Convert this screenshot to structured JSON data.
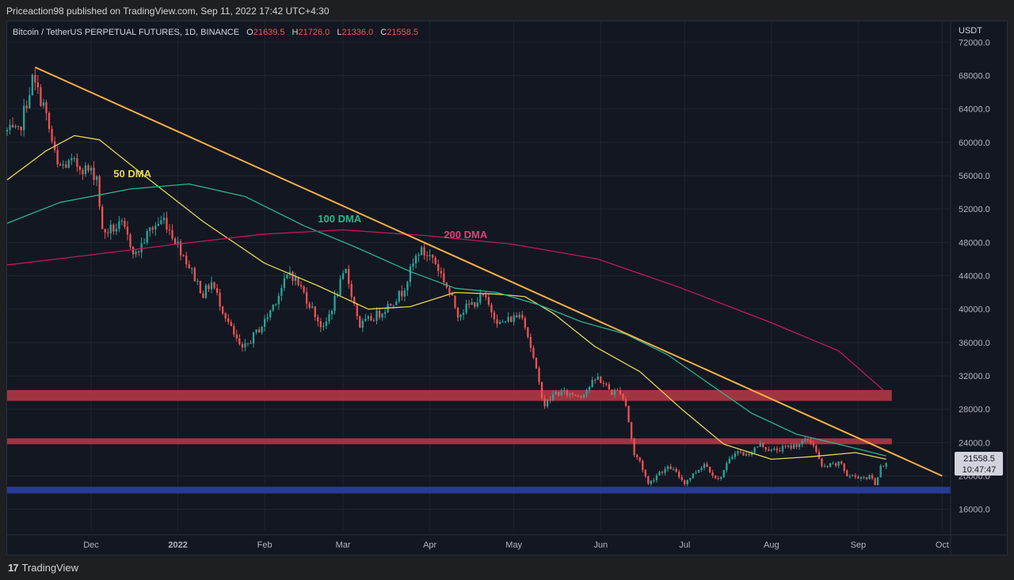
{
  "header": {
    "publisher_line": "Priceaction98 published on TradingView.com, Sep 11, 2022 17:42 UTC+4:30"
  },
  "symbol": {
    "name": "Bitcoin / TetherUS PERPETUAL FUTURES, 1D, BINANCE",
    "o_label": "O",
    "o_value": "21639.5",
    "h_label": "H",
    "h_value": "21726.0",
    "l_label": "L",
    "l_value": "21336.0",
    "c_label": "C",
    "c_value": "21558.5"
  },
  "footer": {
    "logo": "17",
    "brand": "TradingView"
  },
  "colors": {
    "background": "#131722",
    "up": "#26a69a",
    "down": "#ef5350",
    "ma50": "#e6d850",
    "ma100": "#2bb58c",
    "ma200": "#c2185b",
    "trendline": "#f5b041",
    "resistance_zone": "#b33a46",
    "support_zone": "#2b3fa6",
    "text": "#d1d4dc",
    "axis_text": "#b2b5be"
  },
  "chart_data": {
    "type": "candlestick",
    "title": "Bitcoin / TetherUS PERPETUAL FUTURES, 1D, BINANCE",
    "ylabel": "USDT",
    "ylim": [
      13500,
      74500
    ],
    "y_ticks": [
      "72000.0",
      "68000.0",
      "64000.0",
      "60000.0",
      "56000.0",
      "52000.0",
      "48000.0",
      "44000.0",
      "40000.0",
      "36000.0",
      "32000.0",
      "28000.0",
      "24000.0",
      "20000.0",
      "16000.0"
    ],
    "x_ticks": [
      {
        "label": "Dec",
        "date": "2021-12-01"
      },
      {
        "label": "2022",
        "date": "2022-01-01",
        "bold": true
      },
      {
        "label": "Feb",
        "date": "2022-02-01"
      },
      {
        "label": "Mar",
        "date": "2022-03-01"
      },
      {
        "label": "Apr",
        "date": "2022-04-01"
      },
      {
        "label": "May",
        "date": "2022-05-01"
      },
      {
        "label": "Jun",
        "date": "2022-06-01"
      },
      {
        "label": "Jul",
        "date": "2022-07-01"
      },
      {
        "label": "Aug",
        "date": "2022-08-01"
      },
      {
        "label": "Sep",
        "date": "2022-09-01"
      },
      {
        "label": "Oct",
        "date": "2022-10-01"
      }
    ],
    "x_range": [
      "2021-11-01",
      "2022-10-04"
    ],
    "price_path": [
      [
        "2021-11-01",
        61300
      ],
      [
        "2021-11-05",
        61000
      ],
      [
        "2021-11-10",
        67500
      ],
      [
        "2021-11-14",
        64500
      ],
      [
        "2021-11-19",
        57000
      ],
      [
        "2021-11-24",
        57500
      ],
      [
        "2021-11-28",
        57000
      ],
      [
        "2021-12-03",
        56000
      ],
      [
        "2021-12-05",
        49200
      ],
      [
        "2021-12-12",
        50000
      ],
      [
        "2021-12-17",
        46500
      ],
      [
        "2021-12-22",
        49500
      ],
      [
        "2021-12-27",
        50800
      ],
      [
        "2022-01-03",
        46500
      ],
      [
        "2022-01-10",
        41800
      ],
      [
        "2022-01-13",
        43200
      ],
      [
        "2022-01-21",
        36800
      ],
      [
        "2022-01-24",
        35000
      ],
      [
        "2022-02-01",
        38500
      ],
      [
        "2022-02-07",
        42500
      ],
      [
        "2022-02-10",
        44500
      ],
      [
        "2022-02-14",
        42500
      ],
      [
        "2022-02-22",
        37500
      ],
      [
        "2022-02-28",
        43000
      ],
      [
        "2022-03-02",
        44500
      ],
      [
        "2022-03-07",
        38000
      ],
      [
        "2022-03-14",
        39500
      ],
      [
        "2022-03-22",
        42000
      ],
      [
        "2022-03-28",
        47000
      ],
      [
        "2022-04-02",
        46200
      ],
      [
        "2022-04-06",
        43500
      ],
      [
        "2022-04-11",
        39500
      ],
      [
        "2022-04-20",
        41500
      ],
      [
        "2022-04-26",
        38200
      ],
      [
        "2022-05-04",
        39500
      ],
      [
        "2022-05-07",
        35500
      ],
      [
        "2022-05-10",
        31000
      ],
      [
        "2022-05-12",
        28500
      ],
      [
        "2022-05-16",
        30000
      ],
      [
        "2022-05-25",
        29700
      ],
      [
        "2022-05-31",
        31800
      ],
      [
        "2022-06-05",
        30000
      ],
      [
        "2022-06-08",
        30200
      ],
      [
        "2022-06-10",
        28500
      ],
      [
        "2022-06-13",
        22500
      ],
      [
        "2022-06-15",
        21800
      ],
      [
        "2022-06-18",
        19000
      ],
      [
        "2022-06-22",
        20500
      ],
      [
        "2022-06-26",
        21000
      ],
      [
        "2022-07-01",
        19200
      ],
      [
        "2022-07-08",
        21500
      ],
      [
        "2022-07-13",
        19500
      ],
      [
        "2022-07-19",
        23000
      ],
      [
        "2022-07-23",
        22500
      ],
      [
        "2022-07-28",
        23800
      ],
      [
        "2022-08-01",
        23000
      ],
      [
        "2022-08-08",
        23500
      ],
      [
        "2022-08-14",
        24300
      ],
      [
        "2022-08-16",
        23800
      ],
      [
        "2022-08-19",
        21000
      ],
      [
        "2022-08-26",
        21500
      ],
      [
        "2022-08-28",
        20000
      ],
      [
        "2022-09-06",
        19800
      ],
      [
        "2022-09-07",
        18800
      ],
      [
        "2022-09-09",
        21300
      ],
      [
        "2022-09-11",
        21558.5
      ]
    ],
    "series": [
      {
        "name": "50 DMA",
        "points": [
          [
            "2021-11-01",
            55500
          ],
          [
            "2021-11-15",
            59000
          ],
          [
            "2021-11-25",
            60800
          ],
          [
            "2021-12-04",
            60300
          ],
          [
            "2021-12-20",
            56000
          ],
          [
            "2022-01-10",
            50500
          ],
          [
            "2022-02-01",
            45500
          ],
          [
            "2022-02-20",
            42800
          ],
          [
            "2022-03-10",
            40000
          ],
          [
            "2022-03-25",
            40300
          ],
          [
            "2022-04-10",
            42000
          ],
          [
            "2022-04-25",
            41800
          ],
          [
            "2022-05-05",
            41500
          ],
          [
            "2022-05-15",
            39500
          ],
          [
            "2022-05-30",
            35500
          ],
          [
            "2022-06-15",
            32500
          ],
          [
            "2022-06-30",
            28000
          ],
          [
            "2022-07-15",
            23800
          ],
          [
            "2022-08-01",
            22000
          ],
          [
            "2022-08-15",
            22300
          ],
          [
            "2022-08-31",
            22800
          ],
          [
            "2022-09-11",
            22000
          ]
        ]
      },
      {
        "name": "100 DMA",
        "points": [
          [
            "2021-11-01",
            50300
          ],
          [
            "2021-11-20",
            52800
          ],
          [
            "2021-12-15",
            54400
          ],
          [
            "2022-01-05",
            55000
          ],
          [
            "2022-01-25",
            53500
          ],
          [
            "2022-02-15",
            50000
          ],
          [
            "2022-03-05",
            47500
          ],
          [
            "2022-03-25",
            44500
          ],
          [
            "2022-04-10",
            42500
          ],
          [
            "2022-04-25",
            42000
          ],
          [
            "2022-05-10",
            40500
          ],
          [
            "2022-05-25",
            38500
          ],
          [
            "2022-06-10",
            37000
          ],
          [
            "2022-06-25",
            34500
          ],
          [
            "2022-07-10",
            31000
          ],
          [
            "2022-07-25",
            27500
          ],
          [
            "2022-08-10",
            25000
          ],
          [
            "2022-08-25",
            23800
          ],
          [
            "2022-09-11",
            22400
          ]
        ]
      },
      {
        "name": "200 DMA",
        "points": [
          [
            "2021-11-01",
            45300
          ],
          [
            "2021-12-01",
            46500
          ],
          [
            "2022-01-01",
            47800
          ],
          [
            "2022-02-01",
            49000
          ],
          [
            "2022-03-01",
            49500
          ],
          [
            "2022-03-31",
            48800
          ],
          [
            "2022-04-30",
            47800
          ],
          [
            "2022-05-31",
            46000
          ],
          [
            "2022-06-30",
            42500
          ],
          [
            "2022-07-31",
            38500
          ],
          [
            "2022-08-25",
            35000
          ],
          [
            "2022-09-11",
            30000
          ]
        ]
      }
    ],
    "annotations": [
      {
        "text": "50 DMA",
        "date": "2021-12-09",
        "price": 55800,
        "color": "#e6d850"
      },
      {
        "text": "100 DMA",
        "date": "2022-02-20",
        "price": 50400,
        "color": "#2bb58c"
      },
      {
        "text": "200 DMA",
        "date": "2022-04-06",
        "price": 48500,
        "color": "#e0407a"
      }
    ],
    "trendline": {
      "from": [
        "2021-11-11",
        69000
      ],
      "to": [
        "2022-10-01",
        20000
      ]
    },
    "zones": [
      {
        "from": 29000,
        "to": 30300,
        "color": "#b33a46",
        "end_date": "2022-09-13"
      },
      {
        "from": 23800,
        "to": 24500,
        "color": "#b33a46",
        "end_date": "2022-09-13"
      },
      {
        "from": 17900,
        "to": 18700,
        "color": "#2b3fa6",
        "end_date": "2022-10-04"
      }
    ],
    "last_price": {
      "value": "21558.5",
      "countdown": "10:47:47"
    }
  }
}
